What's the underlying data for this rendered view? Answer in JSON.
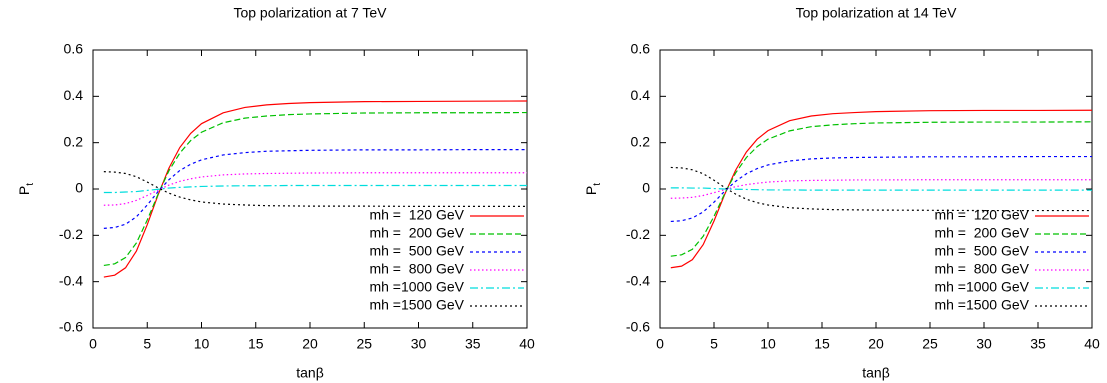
{
  "chart_data": [
    {
      "type": "line",
      "title": "Top polarization at 7 TeV",
      "xlabel": "tanβ",
      "ylabel": "P",
      "ylabel_subscript": "t",
      "x": [
        1,
        2,
        3,
        4,
        5,
        6,
        7,
        8,
        9,
        10,
        12,
        14,
        16,
        18,
        20,
        25,
        30,
        35,
        40
      ],
      "xlim": [
        0,
        40
      ],
      "xticks": [
        0,
        5,
        10,
        15,
        20,
        25,
        30,
        35,
        40
      ],
      "ylim": [
        -0.6,
        0.6
      ],
      "yticks": [
        -0.6,
        -0.4,
        -0.2,
        0,
        0.2,
        0.4,
        0.6
      ],
      "legend": "lower right",
      "series": [
        {
          "name": "mh =  120 GeV",
          "color": "#ff0000",
          "values": [
            -0.38,
            -0.372,
            -0.34,
            -0.268,
            -0.154,
            -0.025,
            0.09,
            0.179,
            0.24,
            0.282,
            0.329,
            0.352,
            0.363,
            0.369,
            0.373,
            0.377,
            0.378,
            0.379,
            0.38
          ]
        },
        {
          "name": "mh =  200 GeV",
          "color": "#00c000",
          "values": [
            -0.33,
            -0.323,
            -0.296,
            -0.233,
            -0.134,
            -0.022,
            0.079,
            0.155,
            0.209,
            0.245,
            0.286,
            0.306,
            0.315,
            0.321,
            0.324,
            0.328,
            0.329,
            0.329,
            0.33
          ]
        },
        {
          "name": "mh =  500 GeV",
          "color": "#0000ff",
          "values": [
            -0.17,
            -0.166,
            -0.152,
            -0.12,
            -0.069,
            -0.011,
            0.04,
            0.08,
            0.107,
            0.126,
            0.147,
            0.157,
            0.163,
            0.165,
            0.167,
            0.169,
            0.169,
            0.17,
            0.17
          ]
        },
        {
          "name": "mh =  800 GeV",
          "color": "#ff00ff",
          "values": [
            -0.07,
            -0.069,
            -0.063,
            -0.049,
            -0.028,
            -0.005,
            0.017,
            0.033,
            0.044,
            0.052,
            0.061,
            0.065,
            0.067,
            0.068,
            0.069,
            0.07,
            0.07,
            0.07,
            0.07
          ]
        },
        {
          "name": "mh =1000 GeV",
          "color": "#00dddd",
          "values": [
            -0.015,
            -0.015,
            -0.013,
            -0.011,
            -0.006,
            -0.001,
            0.004,
            0.007,
            0.009,
            0.011,
            0.013,
            0.014,
            0.014,
            0.015,
            0.015,
            0.015,
            0.015,
            0.015,
            0.015
          ]
        },
        {
          "name": "mh =1500 GeV",
          "color": "#000000",
          "values": [
            0.075,
            0.073,
            0.067,
            0.053,
            0.03,
            0.005,
            -0.018,
            -0.035,
            -0.047,
            -0.056,
            -0.065,
            -0.069,
            -0.072,
            -0.073,
            -0.074,
            -0.074,
            -0.075,
            -0.075,
            -0.075
          ]
        }
      ]
    },
    {
      "type": "line",
      "title": "Top polarization at 14 TeV",
      "xlabel": "tanβ",
      "ylabel": "P",
      "ylabel_subscript": "t",
      "x": [
        1,
        2,
        3,
        4,
        5,
        6,
        7,
        8,
        9,
        10,
        12,
        14,
        16,
        18,
        20,
        25,
        30,
        35,
        40
      ],
      "xlim": [
        0,
        40
      ],
      "xticks": [
        0,
        5,
        10,
        15,
        20,
        25,
        30,
        35,
        40
      ],
      "ylim": [
        -0.6,
        0.6
      ],
      "yticks": [
        -0.6,
        -0.4,
        -0.2,
        0,
        0.2,
        0.4,
        0.6
      ],
      "legend": "lower right",
      "series": [
        {
          "name": "mh =  120 GeV",
          "color": "#ff0000",
          "values": [
            -0.34,
            -0.333,
            -0.305,
            -0.24,
            -0.138,
            -0.022,
            0.081,
            0.16,
            0.215,
            0.252,
            0.295,
            0.315,
            0.325,
            0.33,
            0.334,
            0.338,
            0.339,
            0.339,
            0.34
          ]
        },
        {
          "name": "mh =  200 GeV",
          "color": "#00c000",
          "values": [
            -0.29,
            -0.284,
            -0.26,
            -0.204,
            -0.118,
            -0.019,
            0.069,
            0.136,
            0.183,
            0.215,
            0.251,
            0.269,
            0.277,
            0.282,
            0.285,
            0.288,
            0.289,
            0.289,
            0.29
          ]
        },
        {
          "name": "mh =  500 GeV",
          "color": "#0000ff",
          "values": [
            -0.14,
            -0.137,
            -0.125,
            -0.099,
            -0.057,
            -0.009,
            0.033,
            0.066,
            0.088,
            0.104,
            0.121,
            0.13,
            0.134,
            0.136,
            0.137,
            0.139,
            0.139,
            0.14,
            0.14
          ]
        },
        {
          "name": "mh =  800 GeV",
          "color": "#ff00ff",
          "values": [
            -0.04,
            -0.039,
            -0.036,
            -0.028,
            -0.016,
            -0.003,
            0.01,
            0.019,
            0.025,
            0.03,
            0.035,
            0.037,
            0.038,
            0.039,
            0.039,
            0.04,
            0.04,
            0.04,
            0.04
          ]
        },
        {
          "name": "mh =1000 GeV",
          "color": "#00dddd",
          "values": [
            0.005,
            0.005,
            0.004,
            0.004,
            0.002,
            0,
            -0.001,
            -0.002,
            -0.003,
            -0.004,
            -0.004,
            -0.005,
            -0.005,
            -0.005,
            -0.005,
            -0.005,
            -0.005,
            -0.005,
            -0.005
          ]
        },
        {
          "name": "mh =1500 GeV",
          "color": "#000000",
          "values": [
            0.093,
            0.091,
            0.083,
            0.066,
            0.038,
            0.006,
            -0.022,
            -0.044,
            -0.059,
            -0.069,
            -0.081,
            -0.086,
            -0.089,
            -0.09,
            -0.091,
            -0.092,
            -0.093,
            -0.093,
            -0.093
          ]
        }
      ]
    }
  ]
}
